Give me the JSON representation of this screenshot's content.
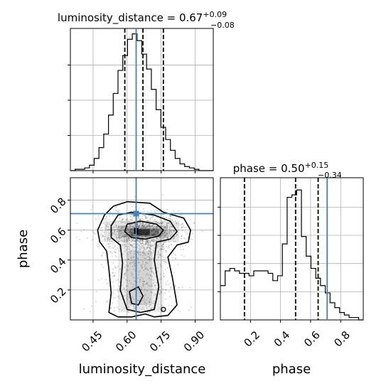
{
  "chart_data": [
    {
      "type": "histogram",
      "panel": "luminosity_distance-marginal",
      "title": {
        "prefix": "luminosity_distance = 0.67",
        "sup": "+0.09",
        "sub": "−0.08"
      },
      "xlim": [
        0.35,
        0.98
      ],
      "truth": 0.64,
      "quantiles": [
        0.59,
        0.67,
        0.76
      ],
      "bin_start": 0.35,
      "bin_width": 0.021,
      "counts": [
        0,
        1,
        1,
        2,
        4,
        9,
        17,
        27,
        41,
        57,
        74,
        85,
        97,
        101,
        96,
        86,
        75,
        60,
        45,
        32,
        23,
        15,
        9,
        5,
        3,
        2,
        1,
        0,
        0,
        0
      ],
      "ylim": [
        0,
        105
      ],
      "grid": true
    },
    {
      "type": "histogram",
      "panel": "phase-marginal",
      "title": {
        "prefix": "phase = 0.50",
        "sup": "+0.15",
        "sub": "−0.34"
      },
      "xlim": [
        0.0,
        0.95
      ],
      "xticks": [
        "0.2",
        "0.4",
        "0.6",
        "0.8"
      ],
      "xlabel": "phase",
      "truth": 0.71,
      "quantiles": [
        0.16,
        0.5,
        0.65
      ],
      "bin_start": 0.0,
      "bin_width": 0.0317,
      "counts": [
        14,
        20,
        21,
        20,
        19,
        19,
        18,
        20,
        20,
        20,
        19,
        16,
        18,
        31,
        50,
        51,
        53,
        34,
        26,
        21,
        17,
        14,
        11,
        7,
        5,
        3,
        2,
        1,
        1,
        0
      ],
      "ylim": [
        0,
        58
      ],
      "grid": true
    },
    {
      "type": "scatter",
      "panel": "luminosity_distance-vs-phase",
      "xlim": [
        0.35,
        0.98
      ],
      "ylim": [
        0.0,
        0.95
      ],
      "xticks": [
        "0.45",
        "0.60",
        "0.75",
        "0.90"
      ],
      "yticks": [
        "0.2",
        "0.4",
        "0.6",
        "0.8"
      ],
      "xlabel": "luminosity_distance",
      "ylabel": "phase",
      "truth": [
        0.64,
        0.71
      ],
      "density_center": [
        0.67,
        0.59
      ],
      "grid": true
    }
  ]
}
